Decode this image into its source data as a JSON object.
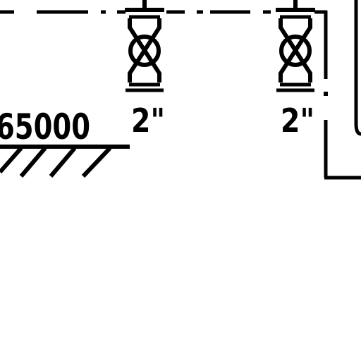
{
  "drawing": {
    "elevation_label": "65000",
    "valves": [
      {
        "size_label": "2\""
      },
      {
        "size_label": "2\""
      }
    ]
  },
  "colors": {
    "line": "#000000",
    "background": "#ffffff"
  }
}
